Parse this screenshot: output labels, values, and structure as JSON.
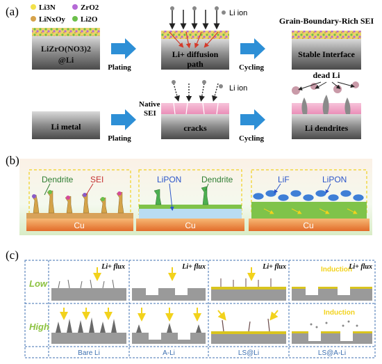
{
  "panel_a": {
    "label": "(a)",
    "legend": [
      "Li3N",
      "ZrO2",
      "LiNxOy",
      "Li2O"
    ],
    "legend_colors": [
      "#f2e14a",
      "#b56ad6",
      "#d6a24a",
      "#6bbf4a"
    ],
    "box1_line1": "LiZrO(NO3)2",
    "box1_line2": "@Li",
    "plating": "Plating",
    "li_ion": "Li ion",
    "diffusion_line1": "Li+ diffusion",
    "diffusion_line2": "path",
    "cycling": "Cycling",
    "top_title": "Grain-Boundary-Rich SEI",
    "stable": "Stable Interface",
    "li_metal": "Li metal",
    "native_line1": "Native",
    "native_line2": "SEI",
    "cracks": "cracks",
    "dead_li": "dead Li",
    "dendrites": "Li dendrites"
  },
  "panel_b": {
    "label": "(b)",
    "dendrite": "Dendrite",
    "sei": "SEI",
    "lipon": "LiPON",
    "lif": "LiF",
    "cu": "Cu"
  },
  "panel_c": {
    "label": "(c)",
    "flux": "Li+ flux",
    "induction": "Induction",
    "low": "Low",
    "high": "High",
    "cols": [
      "Bare Li",
      "A-Li",
      "LS@Li",
      "LS@A-Li"
    ]
  },
  "colors": {
    "metal": "#7d7d7d",
    "arrow_blue": "#2d8fd6",
    "sei_pink": "#f3a9c9",
    "cu_orange": "#e9803a",
    "box_dash": "#f0d020",
    "grid_blue": "#3c6fb0",
    "row_label_green": "#8cc23f",
    "flux_yellow": "#f2d21c",
    "sei_yellow": "#d9c41e"
  }
}
